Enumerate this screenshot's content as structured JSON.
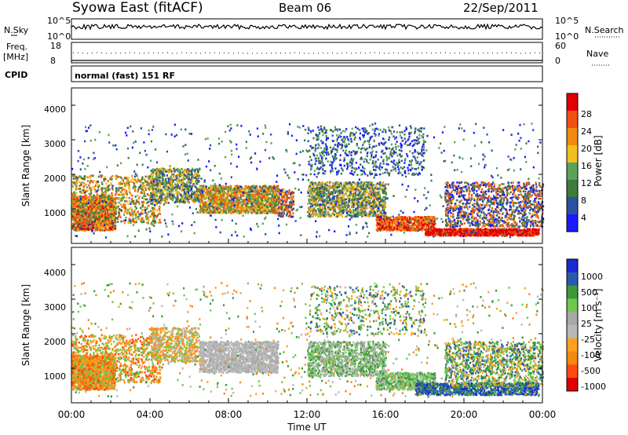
{
  "header": {
    "station": "Syowa East (fitACF)",
    "beam": "Beam 06",
    "date": "22/Sep/2011"
  },
  "status_panels": {
    "nsky_label": "N.Sky",
    "nsky_ticks": [
      "10^5",
      "10^0"
    ],
    "nsearch_label": "N.Search",
    "nsearch_ticks": [
      "10^5",
      "10^0"
    ],
    "freq_label_1": "Freq.",
    "freq_label_2": "[MHz]",
    "freq_ticks": [
      "18",
      "8"
    ],
    "nave_label": "Nave",
    "nave_ticks": [
      "60",
      "0"
    ],
    "cpid_label": "CPID",
    "cpid_text": "normal (fast) 151 RF"
  },
  "colors": {
    "power": [
      "#1a1aff",
      "#2a52a0",
      "#3f7a3f",
      "#5aa35a",
      "#f0c020",
      "#f08a10",
      "#f05010",
      "#e00000"
    ],
    "velocity": [
      "#e00000",
      "#ff4a10",
      "#f08a10",
      "#ffa020",
      "#b8b8b8",
      "#a8a8a8",
      "#6ec850",
      "#3a9a3a",
      "#2a5ab0",
      "#1a2ad0"
    ]
  },
  "chart_data": [
    {
      "type": "heatmap",
      "name": "power",
      "ylabel": "Slant Range [km]",
      "yticks": [
        "1000",
        "2000",
        "3000",
        "4000"
      ],
      "ylim": [
        0,
        4500
      ],
      "colorbar_label": "Power [dB]",
      "colorbar_ticks": [
        "4",
        "8",
        "12",
        "16",
        "20",
        "24",
        "28"
      ],
      "xlim": [
        0,
        24
      ]
    },
    {
      "type": "heatmap",
      "name": "velocity",
      "ylabel": "Slant Range [km]",
      "yticks": [
        "1000",
        "2000",
        "3000",
        "4000"
      ],
      "ylim": [
        0,
        4500
      ],
      "xlabel": "Time UT",
      "xticks": [
        "00:00",
        "04:00",
        "08:00",
        "12:00",
        "16:00",
        "20:00",
        "00:00"
      ],
      "colorbar_label": "Velocity [m s⁻¹]",
      "colorbar_ticks": [
        "1000",
        "500",
        "100",
        "25",
        "-25",
        "-100",
        "-500",
        "-1000"
      ],
      "xlim": [
        0,
        24
      ]
    }
  ]
}
